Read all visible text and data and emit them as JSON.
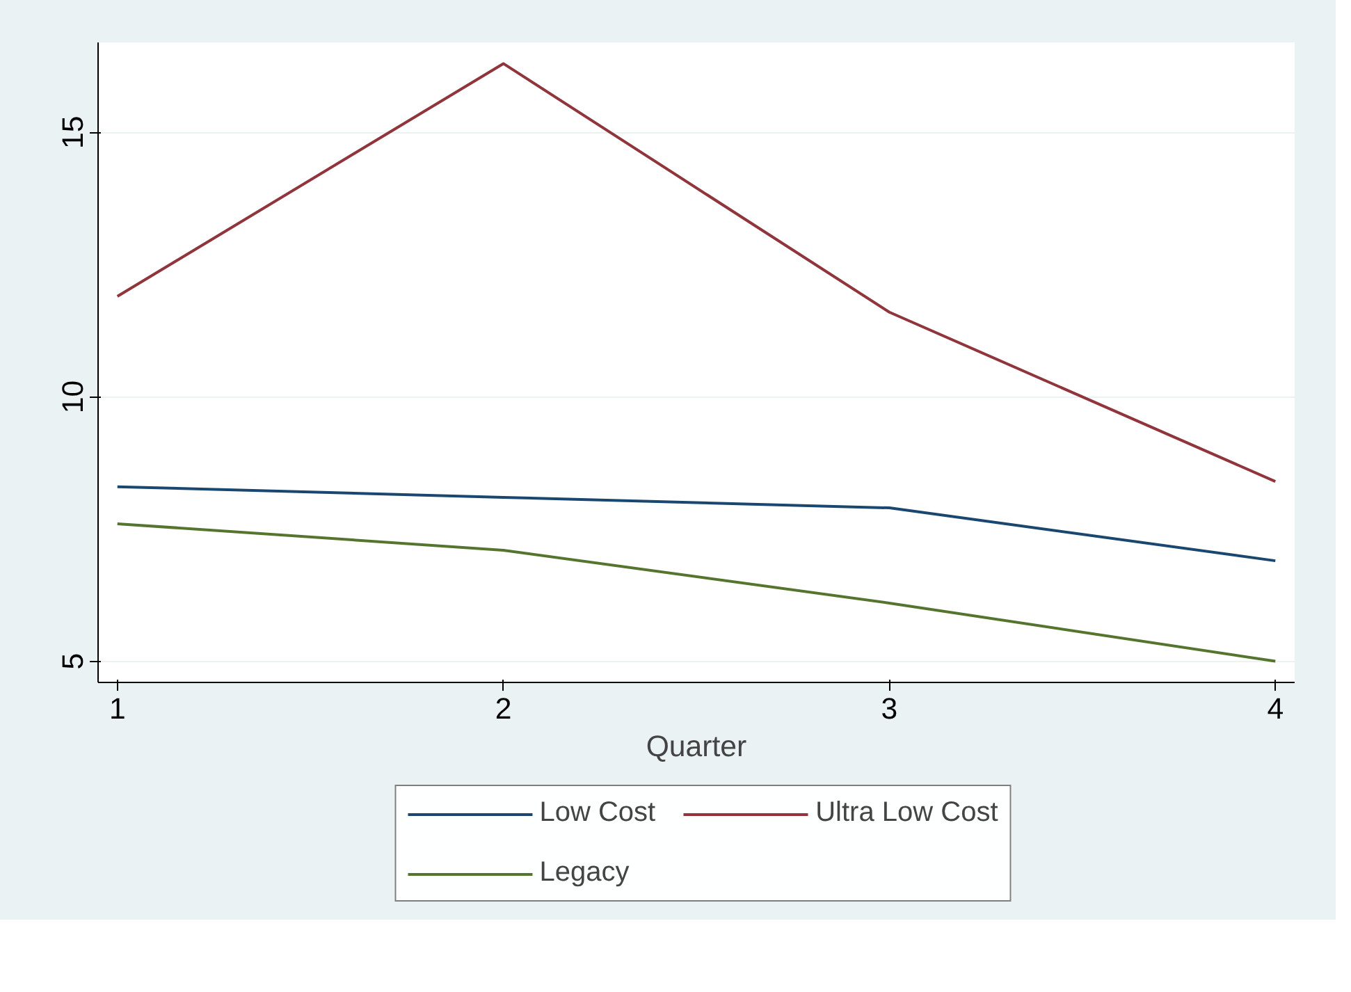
{
  "chart_data": {
    "type": "line",
    "xlabel": "Quarter",
    "x": [
      1,
      2,
      3,
      4
    ],
    "series": [
      {
        "name": "Low Cost",
        "color": "#1a476f",
        "values": [
          8.3,
          8.1,
          7.9,
          6.9
        ]
      },
      {
        "name": "Ultra Low Cost",
        "color": "#90353b",
        "values": [
          11.9,
          16.3,
          11.6,
          8.4
        ]
      },
      {
        "name": "Legacy",
        "color": "#55752f",
        "values": [
          7.6,
          7.1,
          6.1,
          5.0
        ]
      }
    ],
    "xlim": [
      0.95,
      4.05
    ],
    "ylim": [
      4.6,
      16.7
    ],
    "xticks": [
      1,
      2,
      3,
      4
    ],
    "yticks": [
      5,
      10,
      15
    ],
    "grid": "y",
    "legend": "bottom",
    "marker": "none",
    "line_style": "solid"
  }
}
